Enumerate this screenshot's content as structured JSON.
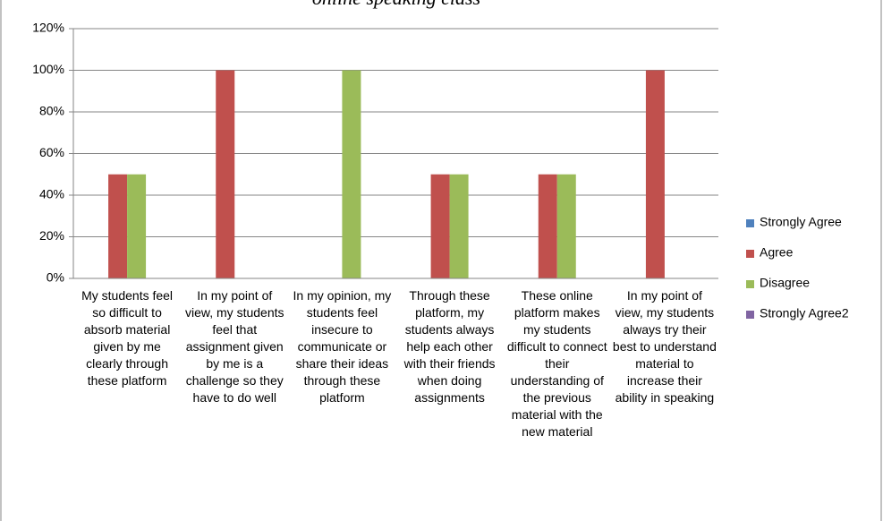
{
  "chart_data": {
    "type": "bar",
    "title": "online speaking class",
    "categories": [
      "My students feel so difficult to absorb material given by me clearly through these platform",
      "In my point of view, my students feel that assignment given by me is a challenge so they have to do well",
      "In my opinion, my students feel insecure to communicate or share their ideas through these platform",
      "Through these platform, my students always help each other with their friends when doing assignments",
      "These online platform makes my students difficult to connect their understanding of the previous material with the new material",
      "In my point of view, my students always try their best to understand material to increase their ability in speaking"
    ],
    "series": [
      {
        "name": "Strongly Agree",
        "color": "#4f81bd",
        "values": [
          0,
          0,
          0,
          0,
          0,
          0
        ]
      },
      {
        "name": "Agree",
        "color": "#c0504d",
        "values": [
          50,
          100,
          0,
          50,
          50,
          100
        ]
      },
      {
        "name": "Disagree",
        "color": "#9bbb59",
        "values": [
          50,
          0,
          100,
          50,
          50,
          0
        ]
      },
      {
        "name": "Strongly Agree2",
        "color": "#8064a2",
        "values": [
          0,
          0,
          0,
          0,
          0,
          0
        ]
      }
    ],
    "ylim": [
      0,
      120
    ],
    "yticks": [
      {
        "value": 0,
        "label": "0%"
      },
      {
        "value": 20,
        "label": "20%"
      },
      {
        "value": 40,
        "label": "40%"
      },
      {
        "value": 60,
        "label": "60%"
      },
      {
        "value": 80,
        "label": "80%"
      },
      {
        "value": 100,
        "label": "100%"
      },
      {
        "value": 120,
        "label": "120%"
      }
    ],
    "grid": true,
    "legend": "right"
  }
}
